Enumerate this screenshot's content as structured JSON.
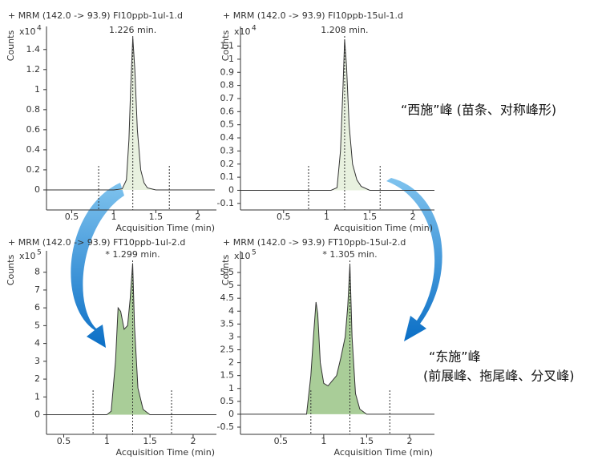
{
  "chart_data": [
    {
      "type": "area",
      "title": "+ MRM (142.0 -> 93.9) FI10ppb-1ul-1.d",
      "ylabel": "Counts",
      "multiplier": "x10",
      "exponent": "4",
      "xlabel": "Acquisition Time (min)",
      "peak_label": "1.226 min.",
      "color": "#e8f1df",
      "line_color": "#333333",
      "x": [
        0.2,
        1.0,
        1.1,
        1.15,
        1.18,
        1.2,
        1.226,
        1.25,
        1.28,
        1.32,
        1.36,
        1.4,
        1.5,
        2.2
      ],
      "values": [
        0,
        0,
        0.01,
        0.1,
        0.5,
        1.0,
        1.52,
        1.2,
        0.6,
        0.2,
        0.07,
        0.02,
        0,
        0
      ],
      "markers": [
        0.82,
        1.226,
        1.66
      ],
      "xlim": [
        0.2,
        2.22
      ],
      "ylim": [
        -0.2,
        1.63
      ],
      "xticks": [
        0.5,
        1,
        1.5,
        2
      ],
      "yticks": [
        0,
        0.2,
        0.4,
        0.6,
        0.8,
        1,
        1.2,
        1.4
      ]
    },
    {
      "type": "area",
      "title": "+ MRM (142.0 -> 93.9) FI10ppb-15ul-1.d",
      "ylabel": "Counts",
      "multiplier": "x10",
      "exponent": "4",
      "xlabel": "Acquisition Time (min)",
      "peak_label": "1.208 min.",
      "color": "#e8f1df",
      "line_color": "#333333",
      "x": [
        0.0,
        1.05,
        1.12,
        1.16,
        1.19,
        1.208,
        1.23,
        1.26,
        1.3,
        1.35,
        1.4,
        1.5,
        2.25
      ],
      "values": [
        0,
        0,
        0.02,
        0.3,
        0.8,
        1.15,
        0.95,
        0.5,
        0.2,
        0.08,
        0.03,
        0,
        0
      ],
      "markers": [
        0.79,
        1.208,
        1.62
      ],
      "xlim": [
        0.0,
        2.25
      ],
      "ylim": [
        -0.15,
        1.25
      ],
      "xticks": [
        0.5,
        1,
        1.5,
        2
      ],
      "yticks": [
        -0.1,
        0,
        0.1,
        0.2,
        0.3,
        0.4,
        0.5,
        0.6,
        0.7,
        0.8,
        0.9,
        1,
        1.1
      ]
    },
    {
      "type": "area",
      "title": "+ MRM (142.0 -> 93.9) FT10ppb-1ul-2.d",
      "ylabel": "Counts",
      "multiplier": "x10",
      "exponent": "5",
      "xlabel": "Acquisition Time (min)",
      "peak_label": "* 1.299 min.",
      "color": "#a9cd98",
      "line_color": "#333333",
      "x": [
        0.3,
        1.0,
        1.05,
        1.1,
        1.13,
        1.16,
        1.2,
        1.24,
        1.27,
        1.299,
        1.32,
        1.36,
        1.42,
        1.5,
        2.27
      ],
      "values": [
        0,
        0,
        0.2,
        3,
        6,
        5.8,
        4.8,
        5,
        6.5,
        8.5,
        5,
        1.5,
        0.3,
        0,
        0
      ],
      "markers": [
        0.84,
        1.299,
        1.75
      ],
      "xlim": [
        0.3,
        2.27
      ],
      "ylim": [
        -1.1,
        9.2
      ],
      "xticks": [
        0.5,
        1,
        1.5,
        2
      ],
      "yticks": [
        0,
        1,
        2,
        3,
        4,
        5,
        6,
        7,
        8
      ]
    },
    {
      "type": "area",
      "title": "+ MRM (142.0 -> 93.9) FT10ppb-15ul-2.d",
      "ylabel": "Counts",
      "multiplier": "x10",
      "exponent": "5",
      "xlabel": "Acquisition Time (min)",
      "peak_label": "* 1.305 min.",
      "color": "#a9cd98",
      "line_color": "#333333",
      "x": [
        0.03,
        0.8,
        0.85,
        0.88,
        0.91,
        0.93,
        0.96,
        1.0,
        1.05,
        1.1,
        1.15,
        1.2,
        1.25,
        1.28,
        1.305,
        1.33,
        1.37,
        1.42,
        1.5,
        2.29
      ],
      "values": [
        0,
        0,
        1.5,
        3.0,
        4.35,
        3.9,
        2.0,
        1.2,
        1.1,
        1.3,
        1.5,
        2.2,
        3.0,
        4.2,
        5.8,
        3.0,
        0.8,
        0.2,
        0,
        0
      ],
      "markers": [
        0.85,
        1.305,
        1.77
      ],
      "xlim": [
        0.03,
        2.29
      ],
      "ylim": [
        -0.78,
        6.34
      ],
      "xticks": [
        0.5,
        1,
        1.5,
        2
      ],
      "yticks": [
        -0.5,
        0,
        0.5,
        1,
        1.5,
        2,
        2.5,
        3,
        3.5,
        4,
        4.5,
        5,
        5.5
      ]
    }
  ],
  "annotations": {
    "good_peak": "“西施”峰 (苗条、对称峰形)",
    "bad_peak": "“东施”峰",
    "bad_peak_detail": "(前展峰、拖尾峰、分叉峰)"
  }
}
